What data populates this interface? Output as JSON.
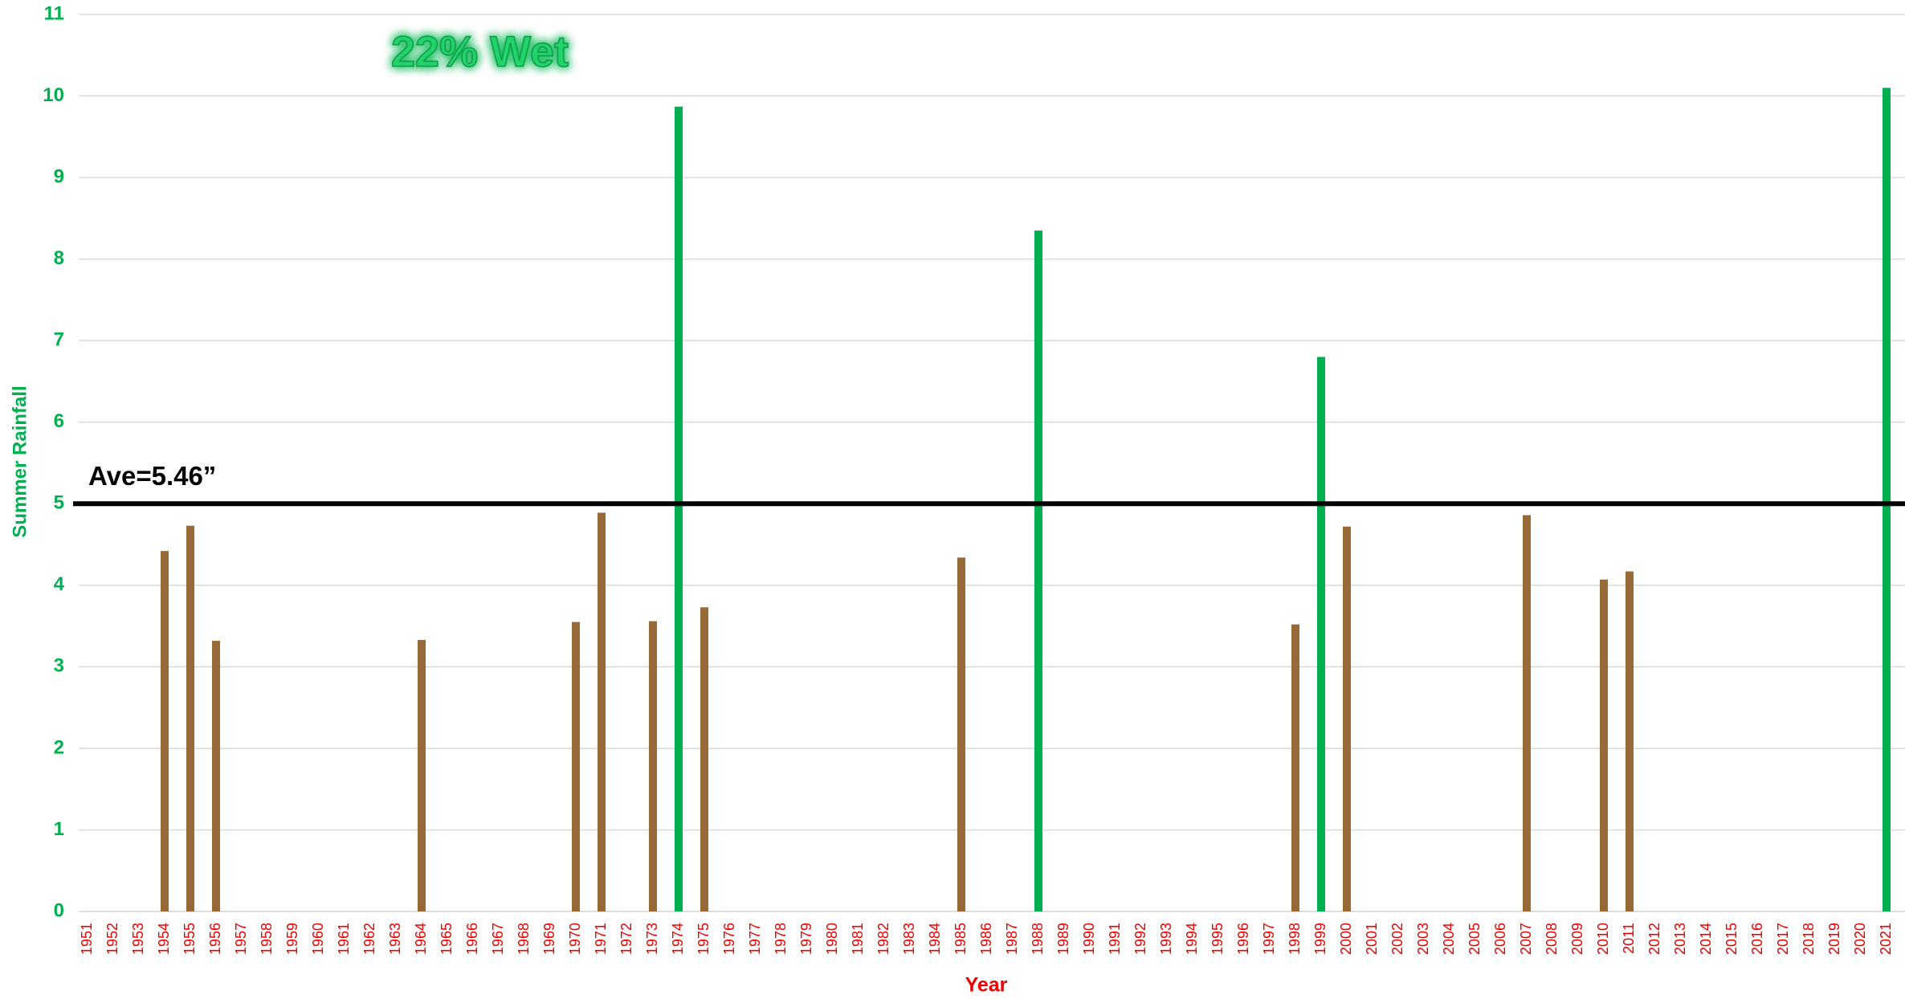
{
  "chart_data": {
    "type": "bar",
    "title": "22% Wet",
    "x_label": "Year",
    "y_label": "Summer Rainfall",
    "categories": [
      "1951",
      "1952",
      "1953",
      "1954",
      "1955",
      "1956",
      "1957",
      "1958",
      "1959",
      "1960",
      "1961",
      "1962",
      "1963",
      "1964",
      "1965",
      "1966",
      "1967",
      "1968",
      "1969",
      "1970",
      "1971",
      "1972",
      "1973",
      "1974",
      "1975",
      "1976",
      "1977",
      "1978",
      "1979",
      "1980",
      "1981",
      "1982",
      "1983",
      "1984",
      "1985",
      "1986",
      "1987",
      "1988",
      "1989",
      "1990",
      "1991",
      "1992",
      "1993",
      "1994",
      "1995",
      "1996",
      "1997",
      "1998",
      "1999",
      "2000",
      "2001",
      "2002",
      "2003",
      "2004",
      "2005",
      "2006",
      "2007",
      "2008",
      "2009",
      "2010",
      "2011",
      "2012",
      "2013",
      "2014",
      "2015",
      "2016",
      "2017",
      "2018",
      "2019",
      "2020",
      "2021"
    ],
    "values": [
      null,
      null,
      null,
      4.42,
      4.73,
      3.32,
      null,
      null,
      null,
      null,
      null,
      null,
      null,
      3.33,
      null,
      null,
      null,
      null,
      null,
      3.55,
      4.89,
      null,
      3.56,
      9.87,
      3.73,
      null,
      null,
      null,
      null,
      null,
      null,
      null,
      null,
      null,
      4.34,
      null,
      null,
      8.35,
      null,
      null,
      null,
      null,
      null,
      null,
      null,
      null,
      null,
      3.52,
      6.8,
      4.72,
      null,
      null,
      null,
      null,
      null,
      null,
      4.86,
      null,
      null,
      4.07,
      4.17,
      null,
      null,
      null,
      null,
      null,
      null,
      null,
      null,
      null,
      10.1
    ],
    "colors": [
      null,
      null,
      null,
      "#976a38",
      "#976a38",
      "#976a38",
      null,
      null,
      null,
      null,
      null,
      null,
      null,
      "#976a38",
      null,
      null,
      null,
      null,
      null,
      "#976a38",
      "#976a38",
      null,
      "#976a38",
      "#00b050",
      "#976a38",
      null,
      null,
      null,
      null,
      null,
      null,
      null,
      null,
      null,
      "#976a38",
      null,
      null,
      "#00b050",
      null,
      null,
      null,
      null,
      null,
      null,
      null,
      null,
      null,
      "#976a38",
      "#00b050",
      "#976a38",
      null,
      null,
      null,
      null,
      null,
      null,
      "#976a38",
      null,
      null,
      "#976a38",
      "#976a38",
      null,
      null,
      null,
      null,
      null,
      null,
      null,
      null,
      null,
      "#00b050"
    ],
    "ylim": [
      0,
      11
    ],
    "yticks": [
      0,
      1,
      2,
      3,
      4,
      5,
      6,
      7,
      8,
      9,
      10,
      11
    ],
    "grid": true,
    "reference_line": {
      "value": 5,
      "label": "Ave=5.46”"
    }
  }
}
